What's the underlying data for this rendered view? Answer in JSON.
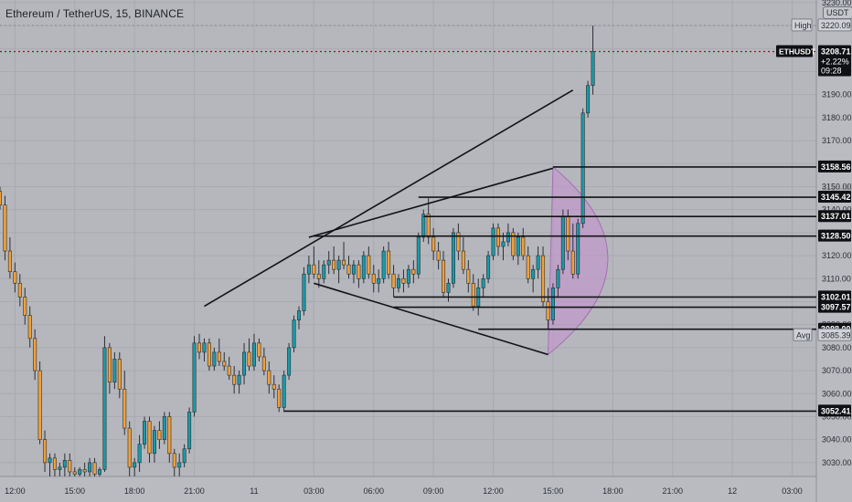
{
  "header": {
    "title": "Ethereum / TetherUS, 15, BINANCE",
    "currency_badge": "USDT"
  },
  "colors": {
    "background": "#b5b7bc",
    "bull": "#1a9aa8",
    "bear": "#f0a13a",
    "wick": "#2b2f35",
    "line": "#121417",
    "current_price_line": "#8b1a1a",
    "arc_fill": "#c58fd0"
  },
  "chart_data": {
    "type": "candlestick",
    "symbol": "ETHUSDT",
    "interval": "15",
    "exchange": "BINANCE",
    "ylim": [
      3024,
      3244
    ],
    "y_ticks": [
      3030,
      3040,
      3050,
      3060,
      3070,
      3080,
      3090,
      3100,
      3110,
      3120,
      3130,
      3140,
      3150,
      3160,
      3170,
      3180,
      3190,
      3200,
      3210,
      3220,
      3230
    ],
    "x_ticks": [
      {
        "label": "12:00",
        "bar": 3
      },
      {
        "label": "15:00",
        "bar": 15
      },
      {
        "label": "18:00",
        "bar": 27
      },
      {
        "label": "21:00",
        "bar": 39
      },
      {
        "label": "11",
        "bar": 51
      },
      {
        "label": "03:00",
        "bar": 63
      },
      {
        "label": "06:00",
        "bar": 75
      },
      {
        "label": "09:00",
        "bar": 87
      },
      {
        "label": "12:00",
        "bar": 99
      },
      {
        "label": "15:00",
        "bar": 111
      },
      {
        "label": "18:00",
        "bar": 123
      },
      {
        "label": "21:00",
        "bar": 135
      },
      {
        "label": "12",
        "bar": 147
      },
      {
        "label": "03:00",
        "bar": 159
      }
    ],
    "candles": [
      [
        3148,
        3150,
        3140,
        3142
      ],
      [
        3142,
        3146,
        3118,
        3122
      ],
      [
        3122,
        3128,
        3110,
        3113
      ],
      [
        3113,
        3117,
        3104,
        3108
      ],
      [
        3108,
        3112,
        3098,
        3102
      ],
      [
        3102,
        3106,
        3090,
        3094
      ],
      [
        3094,
        3098,
        3080,
        3084
      ],
      [
        3084,
        3088,
        3066,
        3070
      ],
      [
        3070,
        3074,
        3038,
        3040
      ],
      [
        3040,
        3044,
        3026,
        3030
      ],
      [
        3030,
        3034,
        3024,
        3032
      ],
      [
        3032,
        3034,
        3024,
        3027
      ],
      [
        3027,
        3030,
        3024,
        3028
      ],
      [
        3028,
        3034,
        3024,
        3031
      ],
      [
        3031,
        3034,
        3024,
        3026
      ],
      [
        3026,
        3028,
        3024,
        3025
      ],
      [
        3025,
        3028,
        3024,
        3027
      ],
      [
        3027,
        3030,
        3024,
        3026
      ],
      [
        3026,
        3032,
        3024,
        3030
      ],
      [
        3030,
        3032,
        3024,
        3025
      ],
      [
        3025,
        3028,
        3024,
        3027
      ],
      [
        3027,
        3085,
        3026,
        3080
      ],
      [
        3080,
        3082,
        3060,
        3065
      ],
      [
        3065,
        3078,
        3062,
        3075
      ],
      [
        3075,
        3078,
        3058,
        3062
      ],
      [
        3062,
        3070,
        3042,
        3045
      ],
      [
        3045,
        3048,
        3024,
        3028
      ],
      [
        3028,
        3032,
        3024,
        3030
      ],
      [
        3030,
        3042,
        3026,
        3038
      ],
      [
        3038,
        3050,
        3036,
        3048
      ],
      [
        3048,
        3050,
        3030,
        3034
      ],
      [
        3034,
        3046,
        3030,
        3044
      ],
      [
        3044,
        3048,
        3036,
        3040
      ],
      [
        3040,
        3052,
        3038,
        3050
      ],
      [
        3050,
        3052,
        3030,
        3034
      ],
      [
        3034,
        3036,
        3024,
        3028
      ],
      [
        3028,
        3034,
        3024,
        3030
      ],
      [
        3030,
        3038,
        3028,
        3036
      ],
      [
        3036,
        3054,
        3034,
        3052
      ],
      [
        3052,
        3085,
        3050,
        3082
      ],
      [
        3082,
        3086,
        3075,
        3078
      ],
      [
        3078,
        3084,
        3074,
        3082
      ],
      [
        3082,
        3084,
        3070,
        3072
      ],
      [
        3072,
        3080,
        3070,
        3078
      ],
      [
        3078,
        3084,
        3072,
        3074
      ],
      [
        3074,
        3078,
        3070,
        3072
      ],
      [
        3072,
        3076,
        3066,
        3068
      ],
      [
        3068,
        3072,
        3060,
        3064
      ],
      [
        3064,
        3070,
        3060,
        3068
      ],
      [
        3068,
        3082,
        3064,
        3078
      ],
      [
        3078,
        3084,
        3070,
        3072
      ],
      [
        3072,
        3086,
        3070,
        3082
      ],
      [
        3082,
        3084,
        3074,
        3076
      ],
      [
        3076,
        3080,
        3068,
        3070
      ],
      [
        3070,
        3074,
        3060,
        3064
      ],
      [
        3064,
        3068,
        3058,
        3062
      ],
      [
        3062,
        3064,
        3052,
        3054
      ],
      [
        3054,
        3070,
        3052,
        3068
      ],
      [
        3068,
        3082,
        3066,
        3080
      ],
      [
        3080,
        3094,
        3078,
        3092
      ],
      [
        3092,
        3098,
        3088,
        3096
      ],
      [
        3096,
        3115,
        3094,
        3112
      ],
      [
        3112,
        3120,
        3108,
        3116
      ],
      [
        3116,
        3124,
        3110,
        3112
      ],
      [
        3112,
        3118,
        3106,
        3110
      ],
      [
        3110,
        3118,
        3108,
        3116
      ],
      [
        3116,
        3122,
        3112,
        3118
      ],
      [
        3118,
        3124,
        3112,
        3114
      ],
      [
        3114,
        3120,
        3108,
        3118
      ],
      [
        3118,
        3126,
        3114,
        3116
      ],
      [
        3116,
        3120,
        3110,
        3112
      ],
      [
        3112,
        3118,
        3108,
        3116
      ],
      [
        3116,
        3118,
        3106,
        3110
      ],
      [
        3110,
        3122,
        3108,
        3120
      ],
      [
        3120,
        3124,
        3110,
        3112
      ],
      [
        3112,
        3116,
        3104,
        3108
      ],
      [
        3108,
        3114,
        3104,
        3110
      ],
      [
        3110,
        3124,
        3108,
        3122
      ],
      [
        3122,
        3126,
        3110,
        3112
      ],
      [
        3112,
        3116,
        3102,
        3106
      ],
      [
        3106,
        3112,
        3104,
        3110
      ],
      [
        3110,
        3114,
        3104,
        3108
      ],
      [
        3108,
        3116,
        3106,
        3114
      ],
      [
        3114,
        3118,
        3108,
        3112
      ],
      [
        3112,
        3130,
        3110,
        3128
      ],
      [
        3128,
        3140,
        3126,
        3138
      ],
      [
        3138,
        3145,
        3125,
        3128
      ],
      [
        3128,
        3132,
        3118,
        3122
      ],
      [
        3122,
        3126,
        3114,
        3118
      ],
      [
        3118,
        3122,
        3102,
        3104
      ],
      [
        3104,
        3110,
        3100,
        3108
      ],
      [
        3108,
        3132,
        3106,
        3130
      ],
      [
        3130,
        3134,
        3118,
        3122
      ],
      [
        3122,
        3128,
        3112,
        3114
      ],
      [
        3114,
        3118,
        3104,
        3108
      ],
      [
        3108,
        3112,
        3096,
        3098
      ],
      [
        3098,
        3110,
        3094,
        3106
      ],
      [
        3106,
        3112,
        3102,
        3110
      ],
      [
        3110,
        3122,
        3108,
        3120
      ],
      [
        3120,
        3134,
        3118,
        3132
      ],
      [
        3132,
        3134,
        3120,
        3124
      ],
      [
        3124,
        3130,
        3118,
        3126
      ],
      [
        3126,
        3134,
        3124,
        3130
      ],
      [
        3130,
        3132,
        3118,
        3120
      ],
      [
        3120,
        3130,
        3116,
        3128
      ],
      [
        3128,
        3132,
        3118,
        3120
      ],
      [
        3120,
        3124,
        3108,
        3110
      ],
      [
        3110,
        3116,
        3104,
        3114
      ],
      [
        3114,
        3124,
        3110,
        3120
      ],
      [
        3120,
        3124,
        3098,
        3100
      ],
      [
        3100,
        3106,
        3088,
        3092
      ],
      [
        3092,
        3108,
        3090,
        3106
      ],
      [
        3106,
        3116,
        3102,
        3114
      ],
      [
        3114,
        3140,
        3112,
        3137
      ],
      [
        3137,
        3140,
        3118,
        3122
      ],
      [
        3122,
        3134,
        3110,
        3112
      ],
      [
        3112,
        3136,
        3110,
        3134
      ],
      [
        3134,
        3184,
        3132,
        3182
      ],
      [
        3182,
        3196,
        3180,
        3194
      ],
      [
        3194,
        3220,
        3190,
        3208.71
      ]
    ],
    "trend_lines": [
      {
        "from": [
          41,
          3098
        ],
        "to": [
          115,
          3192
        ]
      },
      {
        "from": [
          62,
          3128
        ],
        "to": [
          111,
          3158
        ]
      },
      {
        "from": [
          63,
          3108
        ],
        "to": [
          110,
          3077
        ]
      }
    ],
    "levels": [
      {
        "price": 3158.56,
        "label": "3158.56",
        "from_bar": 111
      },
      {
        "price": 3145.42,
        "label": "3145.42",
        "from_bar": 84
      },
      {
        "price": 3137.01,
        "label": "3137.01",
        "from_bar": 85
      },
      {
        "price": 3128.5,
        "label": "3128.50",
        "from_bar": 63
      },
      {
        "price": 3102.01,
        "label": "3102.01",
        "from_bar": 79
      },
      {
        "price": 3097.57,
        "label": "3097.57",
        "from_bar": 79
      },
      {
        "price": 3088.0,
        "label": "3088.00",
        "from_bar": 96
      },
      {
        "price": 3052.41,
        "label": "3052.41",
        "from_bar": 57
      }
    ],
    "arc": {
      "from": [
        111,
        3158.56
      ],
      "to": [
        110,
        3077
      ],
      "bulge_bar": 122
    },
    "annotations": {
      "high": {
        "label": "High",
        "value": "3220.09",
        "price": 3220.09
      },
      "avg": {
        "label": "Avg",
        "value": "3085.39",
        "price": 3085.39
      },
      "current": {
        "symbol": "ETHUSDT",
        "price_label": "3208.71",
        "price": 3208.71,
        "change": "+2.22%",
        "countdown": "09:28"
      },
      "hidden_tick_label": "3140.00"
    }
  }
}
